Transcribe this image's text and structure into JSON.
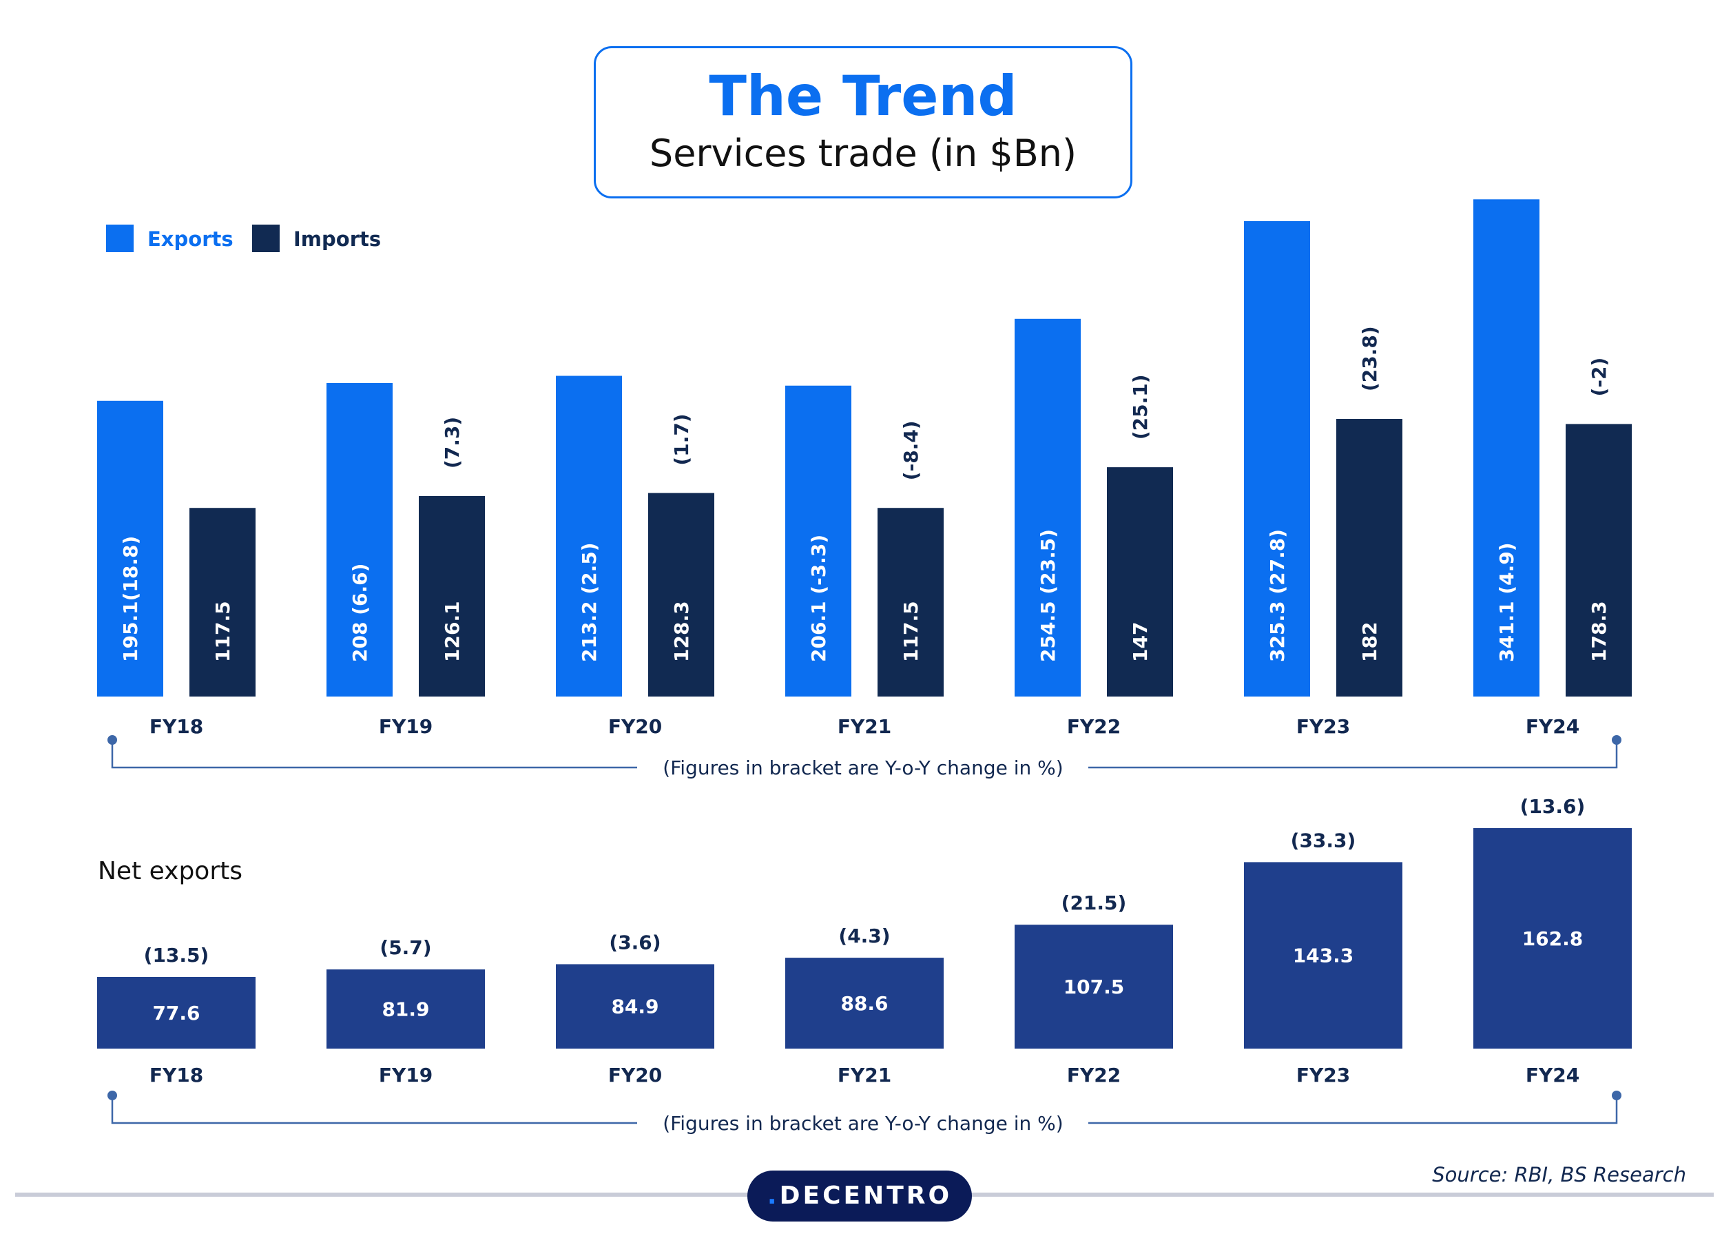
{
  "title": "The Trend",
  "subtitle": "Services trade (in $Bn)",
  "source": "Source: RBI, BS Research",
  "logo": "DECENTRO",
  "colors": {
    "exports": "#0b6ff0",
    "imports": "#112a52",
    "net": "#1f3f8c",
    "text": "#122850"
  },
  "chart_data": [
    {
      "type": "bar",
      "categories": [
        "FY18",
        "FY19",
        "FY20",
        "FY21",
        "FY22",
        "FY23",
        "FY24"
      ],
      "legend": "top-left",
      "series": [
        {
          "name": "Exports",
          "values": [
            195.1,
            208,
            213.2,
            206.1,
            254.5,
            325.3,
            341.1
          ],
          "labels": [
            "195.1(18.8)",
            "208 (6.6)",
            "213.2 (2.5)",
            "206.1 (-3.3)",
            "254.5 (23.5)",
            "325.3 (27.8)",
            "341.1 (4.9)"
          ]
        },
        {
          "name": "Imports",
          "values": [
            117.5,
            126.1,
            128.3,
            117.5,
            147,
            182,
            178.3
          ],
          "labels": [
            "117.5",
            "126.1",
            "128.3",
            "117.5",
            "147",
            "182",
            "178.3"
          ],
          "yoy_labels": [
            "",
            "(7.3)",
            "(1.7)",
            "(-8.4)",
            "(25.1)",
            "(23.8)",
            "(-2)"
          ]
        }
      ],
      "note": "(Figures in bracket are Y-o-Y change in %)"
    },
    {
      "type": "bar",
      "title": "Net exports",
      "categories": [
        "FY18",
        "FY19",
        "FY20",
        "FY21",
        "FY22",
        "FY23",
        "FY24"
      ],
      "values": [
        77.6,
        81.9,
        84.9,
        88.6,
        107.5,
        143.3,
        162.8
      ],
      "labels": [
        "77.6",
        "81.9",
        "84.9",
        "88.6",
        "107.5",
        "143.3",
        "162.8"
      ],
      "yoy_labels": [
        "(13.5)",
        "(5.7)",
        "(3.6)",
        "(4.3)",
        "(21.5)",
        "(33.3)",
        "(13.6)"
      ],
      "note": "(Figures in bracket are Y-o-Y change in %)"
    }
  ]
}
